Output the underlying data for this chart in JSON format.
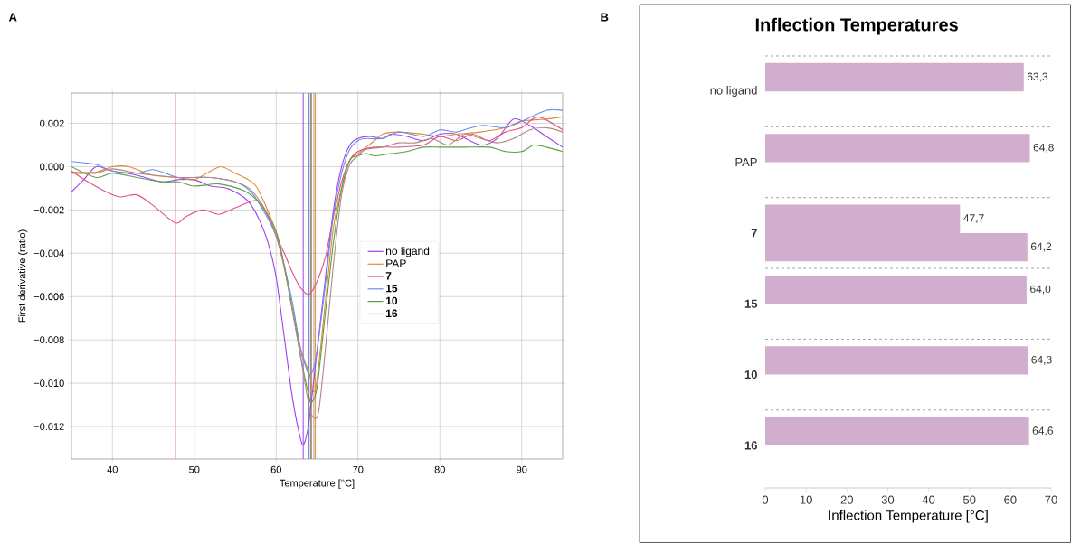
{
  "chart_data": [
    {
      "type": "line",
      "annotations": [
        "A"
      ],
      "xlabel": "Temperature [°C]",
      "ylabel": "First derivative (ratio)",
      "xlim": [
        35,
        95
      ],
      "ylim": [
        -0.0135,
        0.0034
      ],
      "xticks": [
        40,
        50,
        60,
        70,
        80,
        90
      ],
      "yticks": [
        {
          "value": -0.012,
          "label": "−0.012"
        },
        {
          "value": -0.01,
          "label": "−0.010"
        },
        {
          "value": -0.008,
          "label": "−0.008"
        },
        {
          "value": -0.006,
          "label": "−0.006"
        },
        {
          "value": -0.004,
          "label": "−0.004"
        },
        {
          "value": -0.002,
          "label": "−0.002"
        },
        {
          "value": 0,
          "label": "0.000"
        },
        {
          "value": 0.002,
          "label": "0.002"
        }
      ],
      "grid": true,
      "legend": "right",
      "marker": "none",
      "line_style": "solid",
      "series": [
        {
          "name": "no ligand",
          "color": "#a040f0",
          "x": [
            35,
            36.5,
            38,
            40,
            43,
            46,
            48,
            50,
            52,
            54,
            56,
            57,
            58,
            59,
            60,
            61,
            62,
            63,
            63.4,
            64,
            65,
            66,
            67,
            68,
            69,
            70,
            71.5,
            73,
            74,
            76,
            78,
            80,
            82,
            85,
            87,
            89,
            91,
            93,
            95
          ],
          "values": [
            -0.00116,
            -0.0006,
            0.0,
            -0.0002,
            -0.0004,
            -0.0007,
            -0.0006,
            -0.0006,
            -0.0009,
            -0.001,
            -0.0014,
            -0.0018,
            -0.0025,
            -0.0035,
            -0.0051,
            -0.0079,
            -0.0107,
            -0.0126,
            -0.0128,
            -0.0118,
            -0.0085,
            -0.0052,
            -0.002,
            0.0,
            0.001,
            0.0013,
            0.0014,
            0.0013,
            0.0015,
            0.0014,
            0.0012,
            0.0015,
            0.0015,
            0.001,
            0.0013,
            0.0022,
            0.0019,
            0.0014,
            0.0009
          ]
        },
        {
          "name": "PAP",
          "color": "#e08a30",
          "x": [
            35,
            38,
            40,
            42,
            45,
            48,
            50,
            52,
            53.3,
            55,
            57,
            58,
            60,
            61,
            62,
            63,
            64,
            64.8,
            66,
            67,
            68,
            69,
            70,
            71,
            72,
            73,
            75,
            78,
            80,
            82,
            85,
            88,
            90,
            93,
            95
          ],
          "values": [
            -0.00025,
            -0.00025,
            0.0,
            0.0,
            -0.0004,
            -0.0005,
            -0.0006,
            -0.0002,
            0.0,
            -0.0003,
            -0.0007,
            -0.0012,
            -0.003,
            -0.0046,
            -0.0066,
            -0.0084,
            -0.0095,
            -0.0103,
            -0.0063,
            -0.0028,
            -0.001,
            0.0003,
            0.0006,
            0.0009,
            0.0012,
            0.0015,
            0.0016,
            0.0015,
            0.0014,
            0.0015,
            0.0016,
            0.0018,
            0.0021,
            0.0022,
            0.0023
          ]
        },
        {
          "name": "**7**",
          "color": "#e0508a",
          "x": [
            35,
            37,
            40,
            41,
            43,
            45,
            47.7,
            49,
            51,
            53,
            55,
            57,
            58,
            59,
            60,
            61,
            62,
            63,
            64,
            65,
            66,
            67,
            68,
            69,
            70,
            72,
            75,
            78,
            80,
            82,
            84,
            86,
            88,
            90,
            92,
            95
          ],
          "values": [
            -0.0002,
            -0.0007,
            -0.0013,
            -0.0014,
            -0.0013,
            -0.0018,
            -0.0026,
            -0.0023,
            -0.002,
            -0.0022,
            -0.0019,
            -0.0016,
            -0.0016,
            -0.0023,
            -0.0032,
            -0.004,
            -0.0049,
            -0.0056,
            -0.0059,
            -0.0053,
            -0.0042,
            -0.0023,
            -0.0007,
            0.0003,
            0.0007,
            0.0009,
            0.0009,
            0.001,
            0.0014,
            0.0012,
            0.0015,
            0.0012,
            0.0016,
            0.0018,
            0.0023,
            0.0017
          ]
        },
        {
          "name": "**15**",
          "color": "#6a8fe8",
          "x": [
            35,
            38,
            40,
            43,
            45,
            48,
            50,
            52,
            55,
            57,
            59,
            60,
            61,
            62,
            63,
            63.5,
            64,
            64.5,
            65,
            66,
            67,
            68,
            69,
            70,
            71,
            73,
            75,
            78,
            80,
            82,
            85,
            88,
            90,
            93,
            95
          ],
          "values": [
            0.00024,
            0.0001,
            -0.0002,
            -0.0003,
            -0.00014,
            -0.0005,
            -0.0005,
            -0.0005,
            -0.0007,
            -0.0012,
            -0.0024,
            -0.0032,
            -0.0046,
            -0.0063,
            -0.0085,
            -0.0091,
            -0.0096,
            -0.0094,
            -0.0085,
            -0.0055,
            -0.0022,
            -0.0003,
            0.0008,
            0.0012,
            0.0013,
            0.0013,
            0.0016,
            0.0014,
            0.0017,
            0.0016,
            0.0019,
            0.0018,
            0.0021,
            0.0026,
            0.0026
          ]
        },
        {
          "name": "**10**",
          "color": "#5aa040",
          "x": [
            35,
            38,
            40,
            43,
            46,
            48,
            50,
            53,
            56,
            58,
            60,
            61,
            62,
            63,
            64,
            64.3,
            65,
            66,
            67,
            68,
            69,
            70,
            71,
            72,
            74,
            76,
            78,
            80,
            83,
            86,
            88,
            90,
            91.5,
            93,
            95
          ],
          "values": [
            0.0,
            -0.0005,
            -0.0003,
            -0.0005,
            -0.0007,
            -0.0007,
            -0.0009,
            -0.0008,
            -0.0011,
            -0.0017,
            -0.003,
            -0.0046,
            -0.0066,
            -0.0088,
            -0.0106,
            -0.0109,
            -0.0102,
            -0.0068,
            -0.0035,
            -0.001,
            0.0003,
            0.0005,
            0.0006,
            0.0005,
            0.0006,
            0.0007,
            0.0009,
            0.0009,
            0.0009,
            0.0009,
            0.0007,
            0.0007,
            0.001,
            0.0009,
            0.0007
          ]
        },
        {
          "name": "**16**",
          "color": "#b08a80",
          "x": [
            35,
            38,
            40,
            43,
            45,
            48,
            50,
            52,
            55,
            57,
            59,
            60,
            61,
            62,
            63,
            64,
            64.6,
            65.2,
            66,
            67,
            68,
            69,
            70,
            71,
            73,
            75,
            77,
            79,
            81,
            83,
            85,
            87,
            89,
            91,
            93,
            95
          ],
          "values": [
            -0.0003,
            -0.0003,
            -0.0001,
            -0.0003,
            -0.0004,
            -0.0005,
            -0.0005,
            -0.0005,
            -0.0007,
            -0.0011,
            -0.0022,
            -0.0032,
            -0.0047,
            -0.0067,
            -0.0088,
            -0.011,
            -0.0116,
            -0.0113,
            -0.0085,
            -0.0045,
            -0.0013,
            0.0001,
            0.0005,
            0.0008,
            0.0009,
            0.0011,
            0.0011,
            0.0013,
            0.001,
            0.0015,
            0.0013,
            0.0011,
            0.0013,
            0.0017,
            0.0018,
            0.0016
          ]
        }
      ],
      "ref_lines": [
        {
          "axis": "x",
          "value": 47.7,
          "color": "#e0508a"
        },
        {
          "axis": "x",
          "value": 63.3,
          "color": "#a040f0"
        },
        {
          "axis": "x",
          "value": 64.0,
          "color": "#6a8fe8"
        },
        {
          "axis": "x",
          "value": 64.2,
          "color": "#e0508a"
        },
        {
          "axis": "x",
          "value": 64.3,
          "color": "#5aa040"
        },
        {
          "axis": "x",
          "value": 64.6,
          "color": "#b08a80"
        },
        {
          "axis": "x",
          "value": 64.8,
          "color": "#e08a30"
        }
      ]
    },
    {
      "type": "bar",
      "orientation": "horizontal",
      "title": "Inflection Temperatures",
      "annotations": [
        "B"
      ],
      "xlabel": "Inflection Temperature [°C]",
      "categories": [
        "no ligand",
        "PAP",
        "**7**",
        "**15**",
        "**10**",
        "**16**"
      ],
      "xlim": [
        0,
        70
      ],
      "xticks": [
        0,
        10,
        20,
        30,
        40,
        50,
        60,
        70
      ],
      "grid": "y",
      "series": [
        {
          "color": "#d1aecd",
          "values": [
            null,
            null,
            47.7,
            null,
            null,
            null
          ],
          "value_labels": [
            null,
            null,
            "47,7",
            null,
            null,
            null
          ]
        },
        {
          "color": "#d1aecd",
          "values": [
            63.3,
            64.8,
            64.2,
            64.0,
            64.3,
            64.6
          ],
          "value_labels": [
            "63,3",
            "64,8",
            "64,2",
            "64,0",
            "64,3",
            "64,6"
          ]
        }
      ]
    }
  ]
}
